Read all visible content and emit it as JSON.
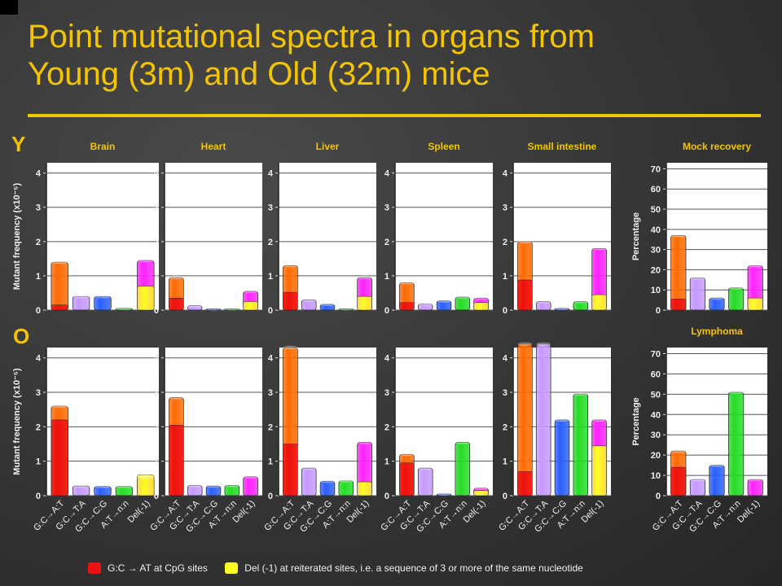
{
  "title_line1": "Point mutational spectra in organs from",
  "title_line2": "Young (3m) and Old (32m) mice",
  "row_young_label": "Y",
  "row_old_label": "O",
  "legend": {
    "cpg": "G:C → AT at CpG sites",
    "del": "Del (-1) at reiterated sites, i.e. a sequence of 3 or more of the same nucleotide"
  },
  "colors": {
    "GC_AT": "#ff6a00",
    "CpG": "#ee1111",
    "GC_TA": "#c599ff",
    "GC_CG": "#2a5fff",
    "AT_nn": "#22dd22",
    "Del": "#ff22ff",
    "Del_reit": "#ffff22"
  },
  "chart_data": [
    {
      "type": "bar",
      "title": "Brain",
      "ylabel": "Mutant frequency (x10⁻⁵)",
      "ylim": [
        0,
        4.3
      ],
      "yticks": [
        0,
        1,
        2,
        3,
        4
      ],
      "categories": [
        "G:C→A:T",
        "G:C→T:A",
        "G:C→C:G",
        "A:T→n:n",
        "Del(-1)"
      ],
      "values": [
        1.4,
        0.4,
        0.4,
        0.05,
        1.45
      ],
      "sub_values": [
        0.15,
        null,
        null,
        null,
        0.7
      ]
    },
    {
      "type": "bar",
      "title": "Heart",
      "ylim": [
        0,
        4.3
      ],
      "yticks": [
        0,
        1,
        2,
        3,
        4
      ],
      "categories": [
        "G:C→A:T",
        "G:C→T:A",
        "G:C→C:G",
        "A:T→n:n",
        "Del(-1)"
      ],
      "values": [
        0.95,
        0.13,
        0.04,
        0.04,
        0.55
      ],
      "sub_values": [
        0.35,
        null,
        null,
        null,
        0.25
      ]
    },
    {
      "type": "bar",
      "title": "Liver",
      "ylim": [
        0,
        4.3
      ],
      "yticks": [
        0,
        1,
        2,
        3,
        4
      ],
      "categories": [
        "G:C→A:T",
        "G:C→T:A",
        "G:C→C:G",
        "A:T→n:n",
        "Del(-1)"
      ],
      "values": [
        1.3,
        0.3,
        0.17,
        0.04,
        0.95
      ],
      "sub_values": [
        0.52,
        null,
        null,
        null,
        0.4
      ]
    },
    {
      "type": "bar",
      "title": "Spleen",
      "ylim": [
        0,
        4.3
      ],
      "yticks": [
        0,
        1,
        2,
        3,
        4
      ],
      "categories": [
        "G:C→A:T",
        "G:C→T:A",
        "G:C→C:G",
        "A:T→n:n",
        "Del(-1)"
      ],
      "values": [
        0.8,
        0.18,
        0.27,
        0.38,
        0.35
      ],
      "sub_values": [
        0.22,
        null,
        null,
        null,
        0.22
      ]
    },
    {
      "type": "bar",
      "title": "Small intestine",
      "ylim": [
        0,
        4.3
      ],
      "yticks": [
        0,
        1,
        2,
        3,
        4
      ],
      "categories": [
        "G:C→A:T",
        "G:C→T:A",
        "G:C→C:G",
        "A:T→n:n",
        "Del(-1)"
      ],
      "values": [
        2.0,
        0.25,
        0.05,
        0.25,
        1.8
      ],
      "sub_values": [
        0.88,
        null,
        null,
        null,
        0.45
      ]
    },
    {
      "type": "bar",
      "title": "Mock recovery",
      "ylabel": "Percentage",
      "ylim": [
        0,
        73
      ],
      "yticks": [
        0,
        10,
        20,
        30,
        40,
        50,
        60,
        70
      ],
      "categories": [
        "G:C→A:T",
        "G:C→T:A",
        "G:C→C:G",
        "A:T→n:n",
        "Del(-1)"
      ],
      "values": [
        37,
        16,
        6,
        11,
        22
      ],
      "sub_values": [
        5.5,
        null,
        null,
        null,
        6
      ]
    },
    {
      "type": "bar",
      "ylabel": "Mutant frequency (x10⁻⁵)",
      "ylim": [
        0,
        4.3
      ],
      "yticks": [
        0,
        1,
        2,
        3,
        4
      ],
      "categories": [
        "G:C→A:T",
        "G:C→T:A",
        "G:C→C:G",
        "A:T→n:n",
        "Del(-1)"
      ],
      "values": [
        2.6,
        0.28,
        0.27,
        0.27,
        0.55
      ],
      "sub_values": [
        2.2,
        null,
        null,
        null,
        0.6
      ]
    },
    {
      "type": "bar",
      "ylim": [
        0,
        4.3
      ],
      "yticks": [
        0,
        1,
        2,
        3,
        4
      ],
      "categories": [
        "G:C→A:T",
        "G:C→T:A",
        "G:C→C:G",
        "A:T→n:n",
        "Del(-1)"
      ],
      "values": [
        2.85,
        0.3,
        0.28,
        0.3,
        0.55
      ],
      "sub_values": [
        2.05,
        null,
        null,
        null,
        null
      ]
    },
    {
      "type": "bar",
      "ylim": [
        0,
        4.3
      ],
      "yticks": [
        0,
        1,
        2,
        3,
        4
      ],
      "categories": [
        "G:C→A:T",
        "G:C→T:A",
        "G:C→C:G",
        "A:T→n:n",
        "Del(-1)"
      ],
      "values": [
        4.3,
        0.8,
        0.42,
        0.43,
        1.55
      ],
      "sub_values": [
        1.5,
        null,
        null,
        null,
        0.4
      ]
    },
    {
      "type": "bar",
      "ylim": [
        0,
        4.3
      ],
      "yticks": [
        0,
        1,
        2,
        3,
        4
      ],
      "categories": [
        "G:C→A:T",
        "G:C→T:A",
        "G:C→C:G",
        "A:T→n:n",
        "Del(-1)"
      ],
      "values": [
        1.2,
        0.8,
        0.05,
        1.55,
        0.22
      ],
      "sub_values": [
        0.95,
        null,
        null,
        null,
        0.15
      ]
    },
    {
      "type": "bar",
      "ylim": [
        0,
        4.3
      ],
      "yticks": [
        0,
        1,
        2,
        3,
        4
      ],
      "categories": [
        "G:C→A:T",
        "G:C→T:A",
        "G:C→C:G",
        "A:T→n:n",
        "Del(-1)"
      ],
      "values": [
        4.4,
        4.4,
        2.2,
        2.95,
        2.2
      ],
      "sub_values": [
        0.7,
        null,
        null,
        null,
        1.45
      ]
    },
    {
      "type": "bar",
      "title": "Lymphoma",
      "ylabel": "Percentage",
      "ylim": [
        0,
        73
      ],
      "yticks": [
        0,
        10,
        20,
        30,
        40,
        50,
        60,
        70
      ],
      "categories": [
        "G:C→A:T",
        "G:C→T:A",
        "G:C→C:G",
        "A:T→n:n",
        "Del(-1)"
      ],
      "values": [
        22,
        8,
        15,
        51,
        8
      ],
      "sub_values": [
        14,
        null,
        null,
        null,
        null
      ]
    }
  ]
}
